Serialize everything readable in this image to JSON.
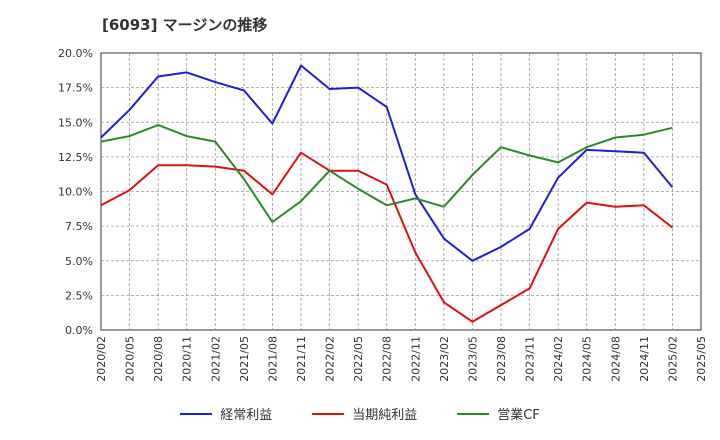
{
  "chart_data": {
    "type": "line",
    "title": "[6093]  マージンの推移",
    "xlabel": "",
    "ylabel": "",
    "ylim": [
      0,
      20
    ],
    "yticks": [
      "0.0%",
      "2.5%",
      "5.0%",
      "7.5%",
      "10.0%",
      "12.5%",
      "15.0%",
      "17.5%",
      "20.0%"
    ],
    "categories": [
      "2020/02",
      "2020/05",
      "2020/08",
      "2020/11",
      "2021/02",
      "2021/05",
      "2021/08",
      "2021/11",
      "2022/02",
      "2022/05",
      "2022/08",
      "2022/11",
      "2023/02",
      "2023/05",
      "2023/08",
      "2023/11",
      "2024/02",
      "2024/05",
      "2024/08",
      "2024/11",
      "2025/02",
      "2025/05"
    ],
    "grid": true,
    "legend": "bottom",
    "series": [
      {
        "name": "経常利益",
        "color": "#1f1fd4",
        "values": [
          13.9,
          15.9,
          18.3,
          18.6,
          17.9,
          17.3,
          14.9,
          19.1,
          17.4,
          17.5,
          16.1,
          9.8,
          6.6,
          5.0,
          6.0,
          7.3,
          11.0,
          13.0,
          12.9,
          12.8,
          10.3,
          null
        ]
      },
      {
        "name": "当期純利益",
        "color": "#e01010",
        "values": [
          9.0,
          10.1,
          11.9,
          11.9,
          11.8,
          11.5,
          9.8,
          12.8,
          11.5,
          11.5,
          10.5,
          5.6,
          2.0,
          0.6,
          1.8,
          3.0,
          7.3,
          9.2,
          8.9,
          9.0,
          7.4,
          null
        ]
      },
      {
        "name": "営業CF",
        "color": "#2a8a2a",
        "values": [
          13.6,
          14.0,
          14.8,
          14.0,
          13.6,
          10.9,
          7.8,
          9.3,
          11.5,
          10.2,
          9.0,
          9.5,
          8.9,
          11.2,
          13.2,
          12.6,
          12.1,
          13.2,
          13.9,
          14.1,
          14.6,
          null
        ]
      }
    ]
  }
}
